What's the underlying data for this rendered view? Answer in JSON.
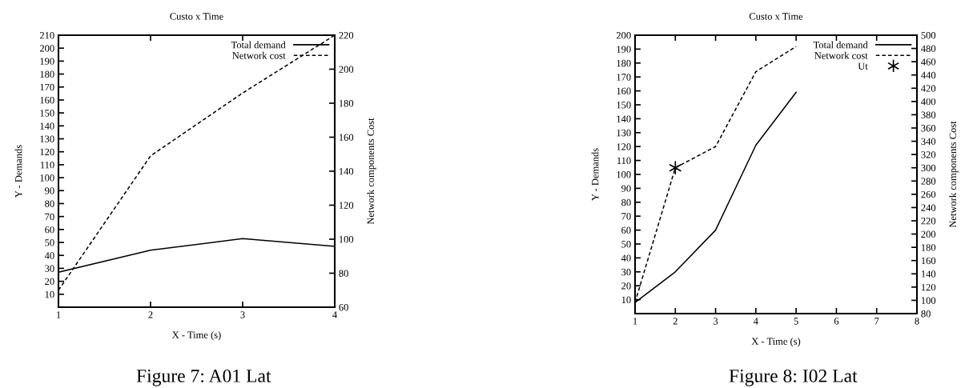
{
  "chart_data": [
    {
      "type": "line",
      "title": "Custo x Time",
      "xlabel": "X - Time (s)",
      "ylabel": "Y - Demands",
      "y2label": "Network components Cost",
      "x": [
        1,
        2,
        3,
        4
      ],
      "xlim": [
        1,
        4
      ],
      "xticks": [
        1,
        2,
        3,
        4
      ],
      "ylim": [
        0,
        210
      ],
      "yticks": [
        10,
        20,
        30,
        40,
        50,
        60,
        70,
        80,
        90,
        100,
        110,
        120,
        130,
        140,
        150,
        160,
        170,
        180,
        190,
        200,
        210
      ],
      "y2lim": [
        60,
        220
      ],
      "y2ticks": [
        60,
        80,
        100,
        120,
        140,
        160,
        180,
        200,
        220
      ],
      "series": [
        {
          "name": "Total demand",
          "color": "#000000",
          "values": [
            27,
            44,
            53,
            47
          ],
          "line_style": "solid"
        },
        {
          "name": "Network cost",
          "color": "#000000",
          "values": [
            70,
            149,
            186,
            220
          ],
          "axis": "y2",
          "line_style": "dashed"
        }
      ],
      "legend": "top right",
      "grid": false,
      "marker": "none",
      "annotations": [
        {
          "text": "Figure 7: A01 Lat"
        }
      ]
    },
    {
      "type": "line",
      "title": "Custo x Time",
      "xlabel": "X - Time (s)",
      "ylabel": "Y - Demands",
      "y2label": "Network components Cost",
      "x": [
        1,
        2,
        3,
        4,
        5
      ],
      "xlim": [
        1,
        8
      ],
      "xticks": [
        1,
        2,
        3,
        4,
        5,
        6,
        7,
        8
      ],
      "ylim": [
        0,
        200
      ],
      "yticks": [
        10,
        20,
        30,
        40,
        50,
        60,
        70,
        80,
        90,
        100,
        110,
        120,
        130,
        140,
        150,
        160,
        170,
        180,
        190,
        200
      ],
      "y2lim": [
        80,
        500
      ],
      "y2ticks": [
        80,
        100,
        120,
        140,
        160,
        180,
        200,
        220,
        240,
        260,
        280,
        300,
        320,
        340,
        360,
        380,
        400,
        420,
        440,
        460,
        480,
        500
      ],
      "series": [
        {
          "name": "Total demand",
          "color": "#000000",
          "values": [
            8,
            30,
            60,
            121,
            159
          ],
          "line_style": "solid"
        },
        {
          "name": "Network cost",
          "color": "#000000",
          "values": [
            97,
            300,
            332,
            445,
            483
          ],
          "axis": "y2",
          "line_style": "dashed"
        },
        {
          "name": "Ut",
          "type": "scatter",
          "color": "#000000",
          "x": [
            2
          ],
          "values": [
            300
          ],
          "axis": "y2",
          "marker": "cross"
        }
      ],
      "legend": "top right",
      "grid": false,
      "marker": "none",
      "annotations": [
        {
          "text": "Figure 8: I02 Lat"
        }
      ]
    }
  ]
}
